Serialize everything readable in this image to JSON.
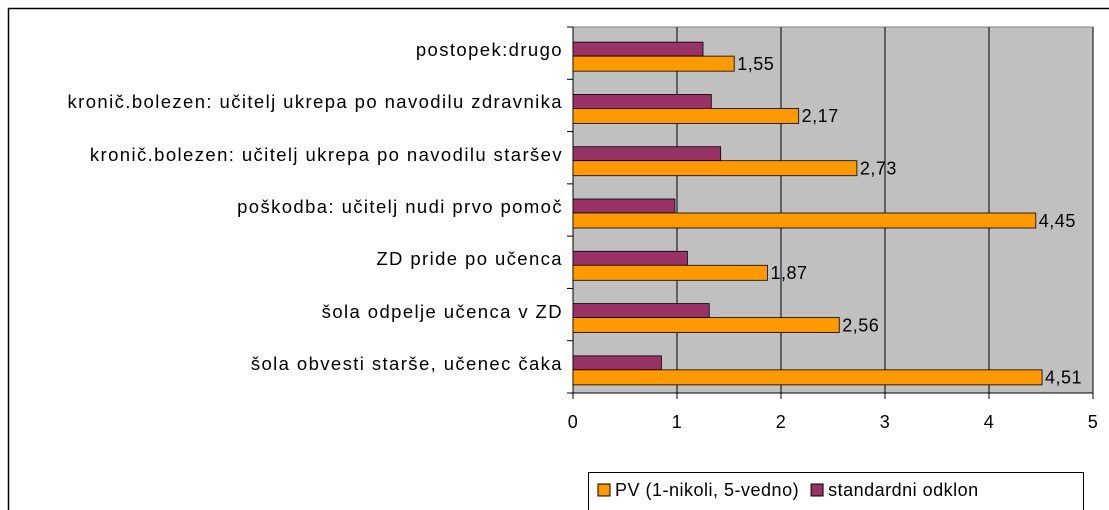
{
  "chart_data": {
    "type": "hbar",
    "categories": [
      "postopek:drugo",
      "kronič.bolezen: učitelj ukrepa po navodilu zdravnika",
      "kronič.bolezen: učitelj ukrepa po navodilu staršev",
      "poškodba: učitelj nudi prvo pomoč",
      "ZD pride po učenca",
      "šola odpelje učenca v ZD",
      "šola obvesti starše, učenec čaka"
    ],
    "series": [
      {
        "name": "PV (1-nikoli, 5-vedno)",
        "color": "#ff9900",
        "values": [
          1.55,
          2.17,
          2.73,
          4.45,
          1.87,
          2.56,
          4.51
        ],
        "value_labels": [
          "1,55",
          "2,17",
          "2,73",
          "4,45",
          "1,87",
          "2,56",
          "4,51"
        ]
      },
      {
        "name": "standardni odklon",
        "color": "#993366",
        "values": [
          1.25,
          1.33,
          1.42,
          0.98,
          1.1,
          1.31,
          0.85
        ]
      }
    ],
    "xlim": [
      0,
      5
    ],
    "xticks": [
      0,
      1,
      2,
      3,
      4,
      5
    ],
    "grid": true,
    "legend": "bottom"
  }
}
